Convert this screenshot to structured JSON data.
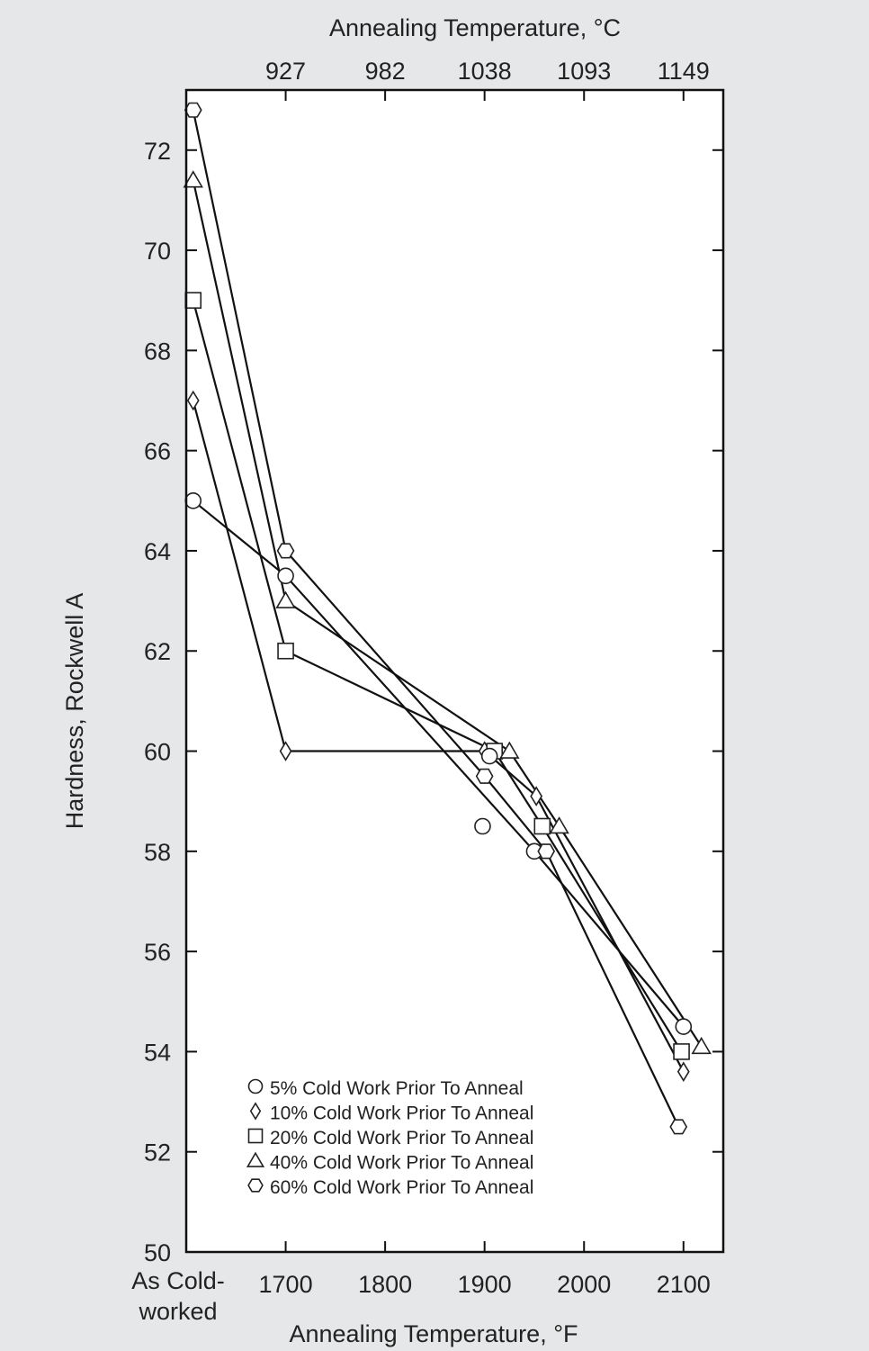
{
  "chart_data": {
    "type": "line",
    "xlabel": "Annealing Temperature, °F",
    "x2label": "Annealing Temperature, °C",
    "ylabel": "Hardness, Rockwell A",
    "xlim": [
      1600,
      2140
    ],
    "ylim": [
      50,
      73.2
    ],
    "yticks": [
      50,
      52,
      54,
      56,
      58,
      60,
      62,
      64,
      66,
      68,
      70,
      72
    ],
    "xtick_labels": [
      {
        "x": 1700,
        "label": "1700"
      },
      {
        "x": 1800,
        "label": "1800"
      },
      {
        "x": 1900,
        "label": "1900"
      },
      {
        "x": 2000,
        "label": "2000"
      },
      {
        "x": 2100,
        "label": "2100"
      }
    ],
    "x_first_label_line1": "As Cold-",
    "x_first_label_line2": "worked",
    "x2tick_labels": [
      {
        "x": 1700,
        "label": "927"
      },
      {
        "x": 1800,
        "label": "982"
      },
      {
        "x": 1900,
        "label": "1038"
      },
      {
        "x": 2000,
        "label": "1093"
      },
      {
        "x": 2100,
        "label": "1149"
      }
    ],
    "grid": false,
    "legend_position": "bottom-left",
    "series": [
      {
        "name": "5% Cold Work Prior To Anneal",
        "marker": "circle",
        "points": [
          [
            1607,
            65.0
          ],
          [
            1700,
            63.5
          ],
          [
            1950,
            58.0
          ],
          [
            2100,
            54.5
          ]
        ]
      },
      {
        "name": "10% Cold Work Prior To Anneal",
        "marker": "diamond",
        "points": [
          [
            1607,
            67.0
          ],
          [
            1700,
            60.0
          ],
          [
            1900,
            60.0
          ],
          [
            1952,
            59.1
          ],
          [
            2100,
            53.6
          ]
        ]
      },
      {
        "name": "20% Cold Work Prior To Anneal",
        "marker": "square",
        "points": [
          [
            1607,
            69.0
          ],
          [
            1700,
            62.0
          ],
          [
            1910,
            60.0
          ],
          [
            1958,
            58.5
          ],
          [
            2098,
            54.0
          ]
        ]
      },
      {
        "name": "40% Cold Work Prior To Anneal",
        "marker": "triangle",
        "points": [
          [
            1607,
            71.4
          ],
          [
            1700,
            63.0
          ],
          [
            1925,
            60.0
          ],
          [
            1975,
            58.5
          ],
          [
            2118,
            54.1
          ]
        ]
      },
      {
        "name": "60% Cold Work Prior To Anneal",
        "marker": "hexagon",
        "points": [
          [
            1607,
            72.8
          ],
          [
            1700,
            64.0
          ],
          [
            1900,
            59.5
          ],
          [
            1962,
            58.0
          ],
          [
            2095,
            52.5
          ]
        ]
      }
    ],
    "extra_points": [
      {
        "series": 0,
        "marker": "circle",
        "x": 1898,
        "y": 58.5
      },
      {
        "series": 0,
        "marker": "circle",
        "x": 1905,
        "y": 59.9
      }
    ]
  }
}
